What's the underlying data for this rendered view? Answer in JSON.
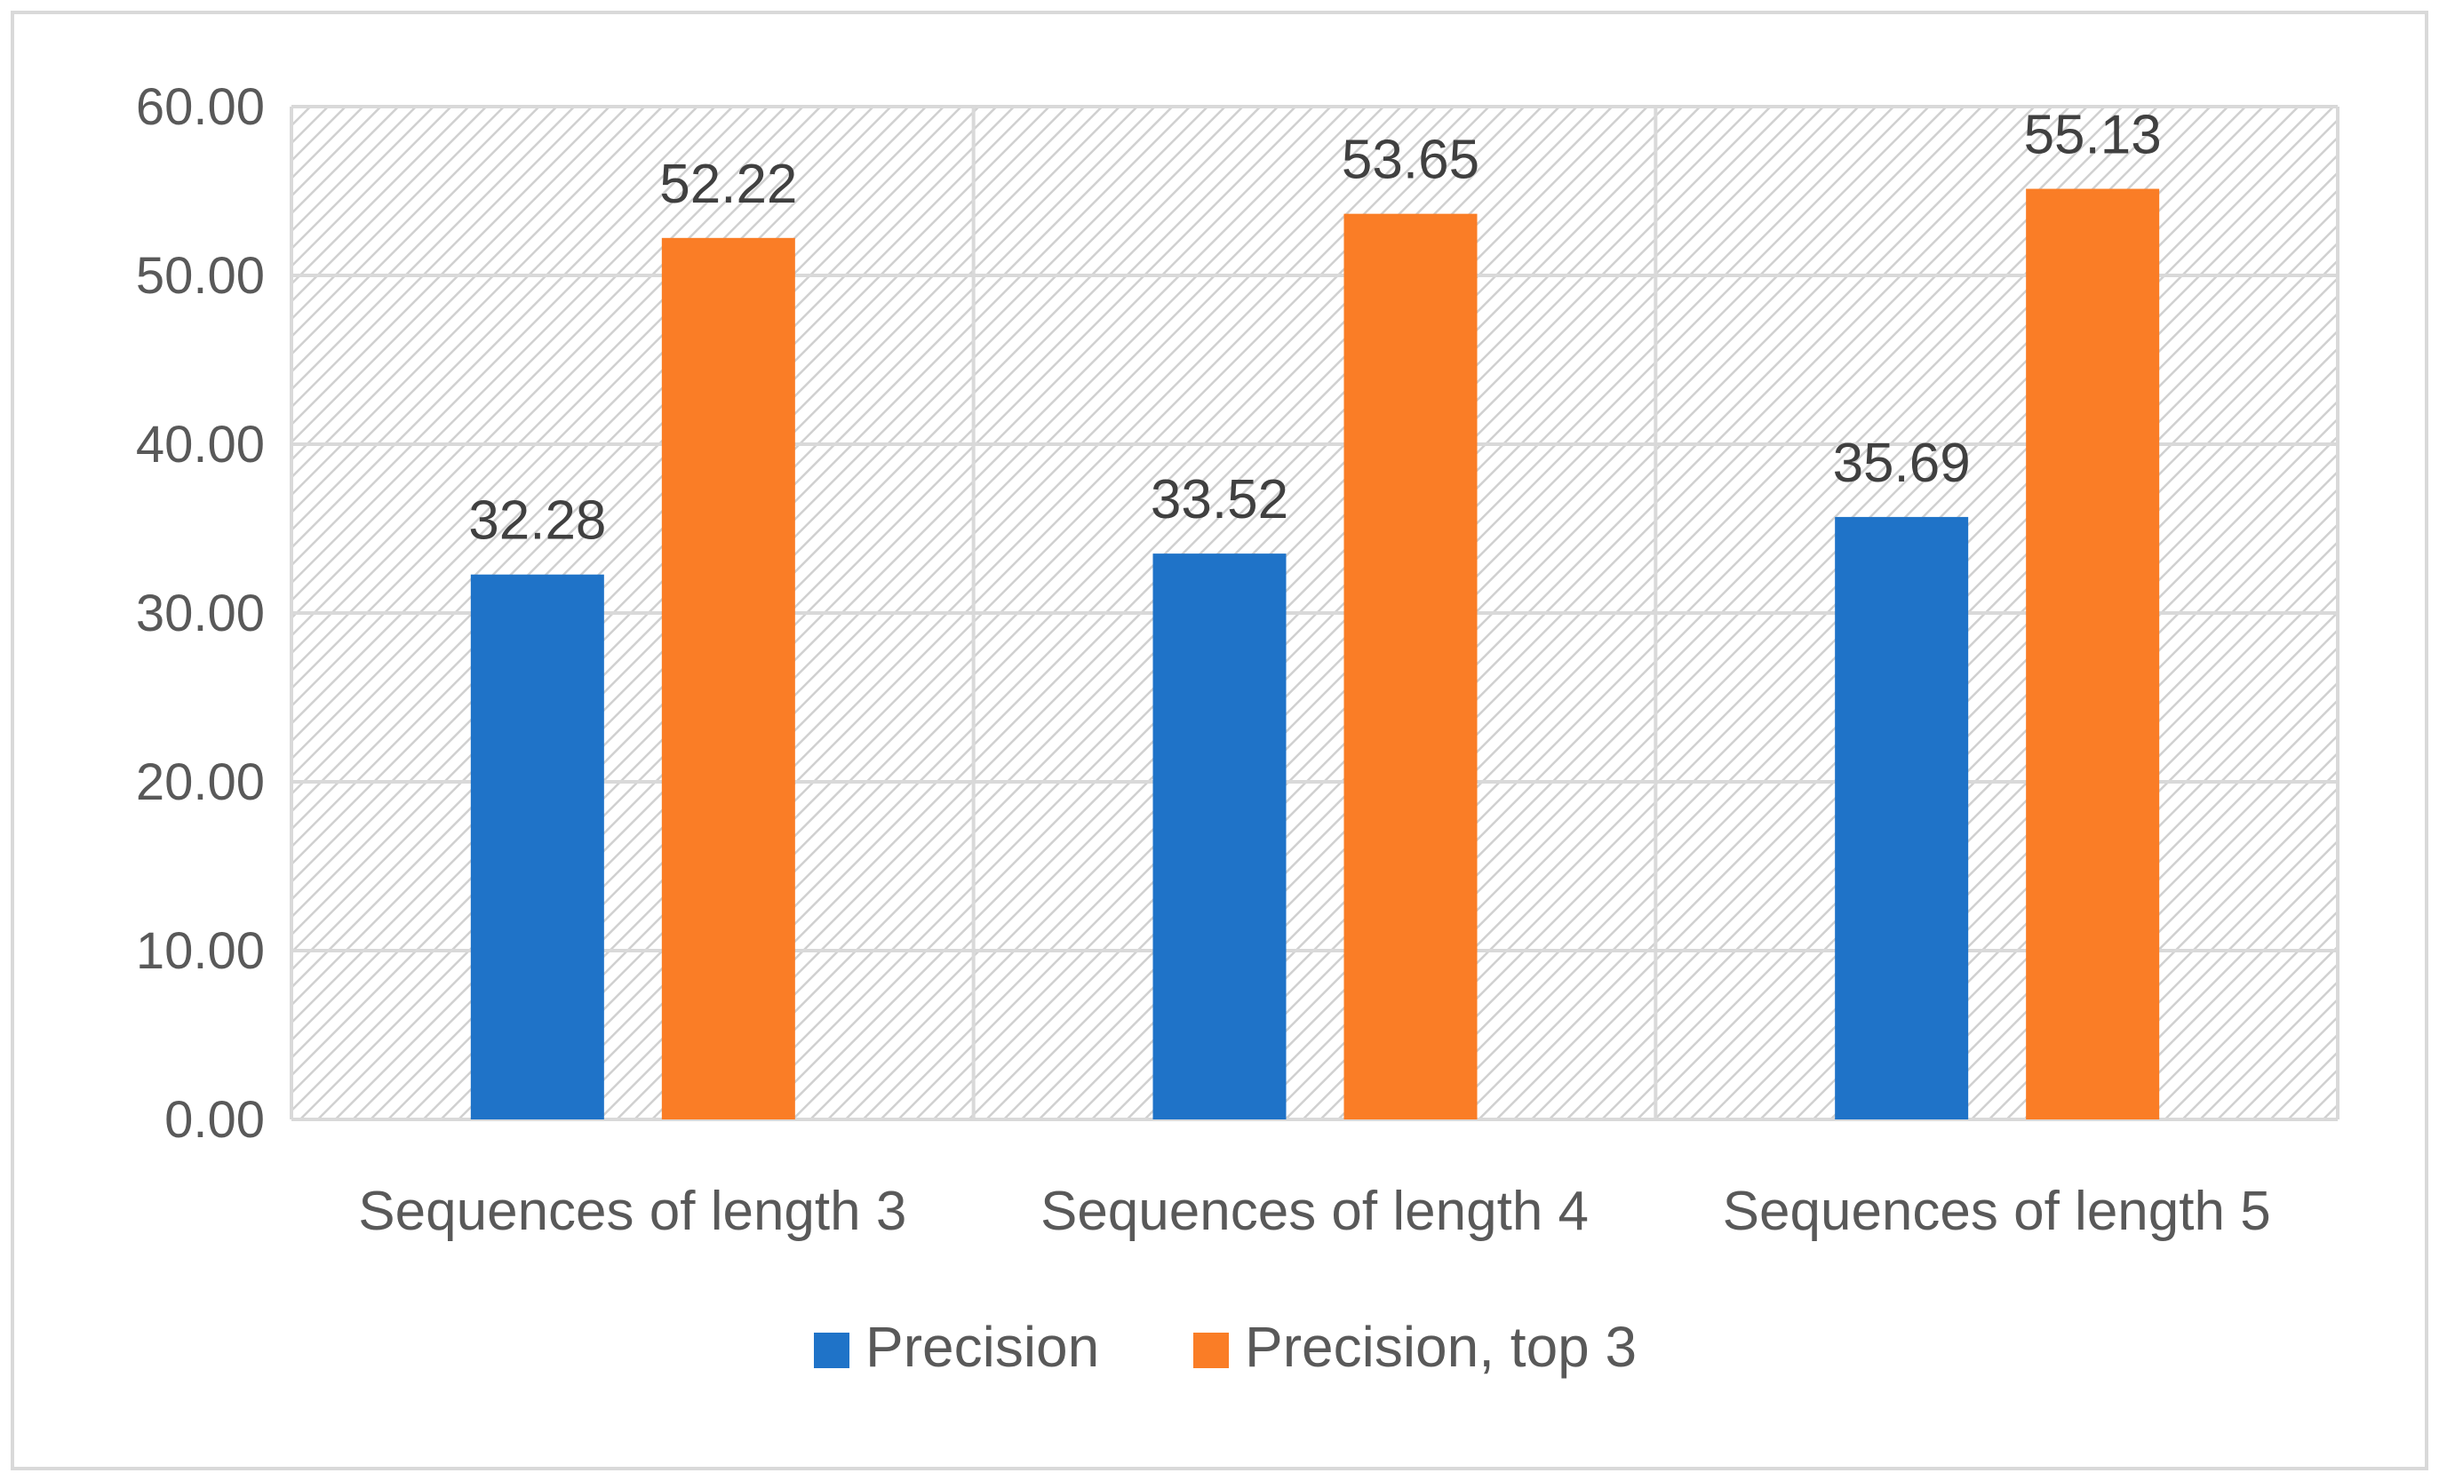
{
  "chart_data": {
    "type": "bar",
    "categories": [
      "Sequences of length 3",
      "Sequences of length 4",
      "Sequences of length 5"
    ],
    "series": [
      {
        "name": "Precision",
        "values": [
          32.28,
          33.52,
          35.69
        ],
        "color": "#1f73c8"
      },
      {
        "name": "Precision, top 3",
        "values": [
          52.22,
          53.65,
          55.13
        ],
        "color": "#fa7d26"
      }
    ],
    "yticks": [
      "0.00",
      "10.00",
      "20.00",
      "30.00",
      "40.00",
      "50.00",
      "60.00"
    ],
    "ylim": [
      0,
      60
    ],
    "data_labels": true,
    "grid": true,
    "legend_position": "bottom",
    "background": "diagonal-hatch",
    "title": "",
    "xlabel": "",
    "ylabel": ""
  }
}
